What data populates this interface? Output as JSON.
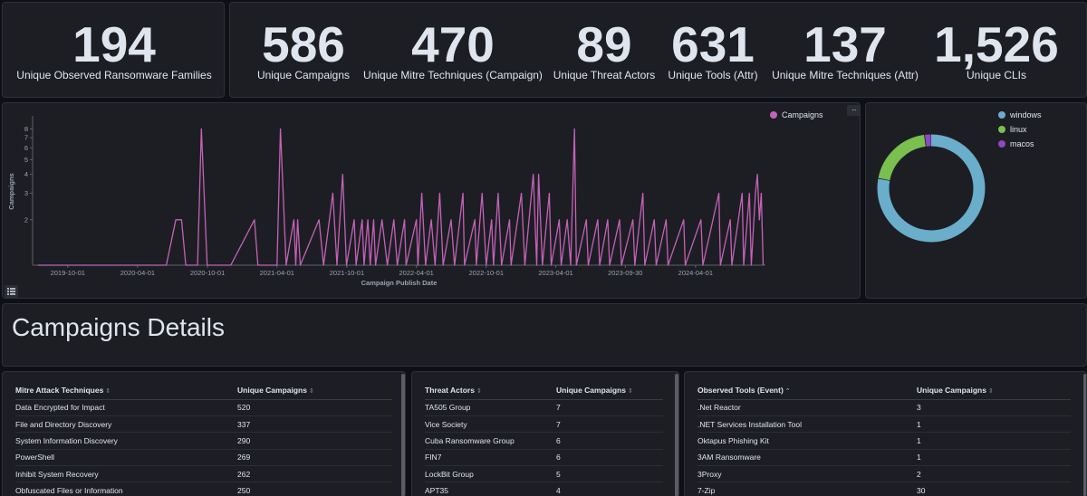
{
  "metrics": {
    "families": {
      "value": "194",
      "label": "Unique Observed Ransomware Families"
    },
    "campaigns": {
      "value": "586",
      "label": "Unique Campaigns"
    },
    "mitre_campaign": {
      "value": "470",
      "label": "Unique Mitre Techniques (Campaign)"
    },
    "threat_actors": {
      "value": "89",
      "label": "Unique Threat Actors"
    },
    "tools": {
      "value": "631",
      "label": "Unique Tools (Attr)"
    },
    "mitre_attr": {
      "value": "137",
      "label": "Unique Mitre Techniques (Attr)"
    },
    "clis": {
      "value": "1,526",
      "label": "Unique CLIs"
    }
  },
  "chart_data": [
    {
      "type": "line",
      "xlabel": "Campaign Publish Date",
      "ylabel": "Campaigns",
      "y_scale": "log",
      "y_ticks": [
        "2",
        "3",
        "4",
        "5",
        "6",
        "7",
        "8"
      ],
      "x_ticks": [
        "2019-10-01",
        "2020-04-01",
        "2020-10-01",
        "2021-04-01",
        "2021-10-01",
        "2022-04-01",
        "2022-10-01",
        "2023-04-01",
        "2023-09-30",
        "2024-04-01"
      ],
      "legend_position": "top-right",
      "series": [
        {
          "name": "Campaigns",
          "color": "#c462b8",
          "points": [
            [
              "2019-07-15",
              1
            ],
            [
              "2020-06-15",
              1
            ],
            [
              "2020-07-10",
              2
            ],
            [
              "2020-07-25",
              2
            ],
            [
              "2020-08-05",
              1
            ],
            [
              "2020-09-05",
              1
            ],
            [
              "2020-09-15",
              8
            ],
            [
              "2020-09-30",
              1
            ],
            [
              "2020-12-01",
              1
            ],
            [
              "2021-02-01",
              2
            ],
            [
              "2021-02-10",
              1
            ],
            [
              "2021-04-01",
              1
            ],
            [
              "2021-04-10",
              8
            ],
            [
              "2021-04-25",
              1
            ],
            [
              "2021-05-15",
              2
            ],
            [
              "2021-05-20",
              1
            ],
            [
              "2021-05-25",
              2
            ],
            [
              "2021-06-01",
              1
            ],
            [
              "2021-07-20",
              2
            ],
            [
              "2021-08-01",
              1
            ],
            [
              "2021-08-25",
              3
            ],
            [
              "2021-09-05",
              1
            ],
            [
              "2021-09-20",
              4
            ],
            [
              "2021-09-30",
              1
            ],
            [
              "2021-10-20",
              2
            ],
            [
              "2021-10-25",
              1
            ],
            [
              "2021-11-10",
              2
            ],
            [
              "2021-11-15",
              1
            ],
            [
              "2021-11-25",
              2
            ],
            [
              "2021-12-01",
              1
            ],
            [
              "2021-12-10",
              2
            ],
            [
              "2021-12-15",
              1
            ],
            [
              "2022-01-01",
              2
            ],
            [
              "2022-01-15",
              1
            ],
            [
              "2022-02-01",
              2
            ],
            [
              "2022-02-10",
              1
            ],
            [
              "2022-03-01",
              2
            ],
            [
              "2022-03-05",
              1
            ],
            [
              "2022-04-01",
              2
            ],
            [
              "2022-04-05",
              1
            ],
            [
              "2022-04-15",
              3
            ],
            [
              "2022-04-25",
              1
            ],
            [
              "2022-05-10",
              2
            ],
            [
              "2022-05-20",
              1
            ],
            [
              "2022-06-01",
              3
            ],
            [
              "2022-06-10",
              1
            ],
            [
              "2022-07-01",
              2
            ],
            [
              "2022-07-10",
              1
            ],
            [
              "2022-08-01",
              3
            ],
            [
              "2022-08-05",
              1
            ],
            [
              "2022-09-01",
              2
            ],
            [
              "2022-09-05",
              1
            ],
            [
              "2022-09-20",
              3
            ],
            [
              "2022-10-01",
              1
            ],
            [
              "2022-10-15",
              2
            ],
            [
              "2022-10-20",
              1
            ],
            [
              "2022-11-01",
              3
            ],
            [
              "2022-11-10",
              1
            ],
            [
              "2022-12-01",
              2
            ],
            [
              "2022-12-05",
              1
            ],
            [
              "2023-01-01",
              3
            ],
            [
              "2023-01-10",
              1
            ],
            [
              "2023-02-01",
              4
            ],
            [
              "2023-02-10",
              1
            ],
            [
              "2023-02-15",
              4
            ],
            [
              "2023-02-25",
              1
            ],
            [
              "2023-03-15",
              3
            ],
            [
              "2023-03-20",
              1
            ],
            [
              "2023-04-10",
              2
            ],
            [
              "2023-04-15",
              1
            ],
            [
              "2023-05-01",
              2
            ],
            [
              "2023-05-10",
              1
            ],
            [
              "2023-05-20",
              8
            ],
            [
              "2023-05-25",
              1
            ],
            [
              "2023-06-20",
              2
            ],
            [
              "2023-06-25",
              1
            ],
            [
              "2023-07-20",
              2
            ],
            [
              "2023-07-25",
              1
            ],
            [
              "2023-08-15",
              2
            ],
            [
              "2023-08-20",
              1
            ],
            [
              "2023-09-15",
              2
            ],
            [
              "2023-09-20",
              1
            ],
            [
              "2023-10-20",
              2
            ],
            [
              "2023-10-25",
              1
            ],
            [
              "2023-11-15",
              3
            ],
            [
              "2023-11-20",
              1
            ],
            [
              "2023-12-15",
              2
            ],
            [
              "2023-12-20",
              1
            ],
            [
              "2024-01-15",
              2
            ],
            [
              "2024-01-20",
              1
            ],
            [
              "2024-03-01",
              2
            ],
            [
              "2024-03-05",
              1
            ],
            [
              "2024-04-15",
              2
            ],
            [
              "2024-04-20",
              1
            ],
            [
              "2024-06-01",
              3
            ],
            [
              "2024-06-05",
              1
            ],
            [
              "2024-07-01",
              2
            ],
            [
              "2024-07-05",
              1
            ],
            [
              "2024-08-01",
              3
            ],
            [
              "2024-08-05",
              1
            ],
            [
              "2024-08-20",
              3
            ],
            [
              "2024-08-25",
              1
            ],
            [
              "2024-09-05",
              3
            ],
            [
              "2024-09-10",
              4
            ],
            [
              "2024-09-15",
              2
            ],
            [
              "2024-09-20",
              3
            ],
            [
              "2024-09-25",
              1
            ]
          ]
        }
      ]
    },
    {
      "type": "pie",
      "donut": true,
      "legend_position": "top-right",
      "labels": [
        "windows",
        "linux",
        "macos"
      ],
      "values": [
        78,
        20,
        2
      ],
      "colors": [
        "#6aaecb",
        "#79c04f",
        "#8e48c0"
      ]
    }
  ],
  "section_title": "Campaigns Details",
  "tables": {
    "mitre": {
      "headers": [
        "Mitre Attack Techniques",
        "Unique Campaigns"
      ],
      "rows": [
        [
          "Data Encrypted for Impact",
          "520"
        ],
        [
          "File and Directory Discovery",
          "337"
        ],
        [
          "System Information Discovery",
          "290"
        ],
        [
          "PowerShell",
          "269"
        ],
        [
          "Inhibit System Recovery",
          "262"
        ],
        [
          "Obfuscated Files or Information",
          "250"
        ]
      ]
    },
    "actors": {
      "headers": [
        "Threat Actors",
        "Unique Campaigns"
      ],
      "rows": [
        [
          "TA505 Group",
          "7"
        ],
        [
          "Vice Society",
          "7"
        ],
        [
          "Cuba Ransomware Group",
          "6"
        ],
        [
          "FIN7",
          "6"
        ],
        [
          "LockBit Group",
          "5"
        ],
        [
          "APT35",
          "4"
        ]
      ]
    },
    "tools": {
      "headers": [
        "Observed Tools (Event)",
        "Unique Campaigns"
      ],
      "rows": [
        [
          ".Net Reactor",
          "3"
        ],
        [
          ".NET Services Installation Tool",
          "1"
        ],
        [
          "Oktapus Phishing Kit",
          "1"
        ],
        [
          "3AM Ransomware",
          "1"
        ],
        [
          "3Proxy",
          "2"
        ],
        [
          "7-Zip",
          "30"
        ]
      ]
    }
  },
  "icons": {
    "sort": "⇕",
    "sort_asc": "⌃",
    "options": "···"
  }
}
